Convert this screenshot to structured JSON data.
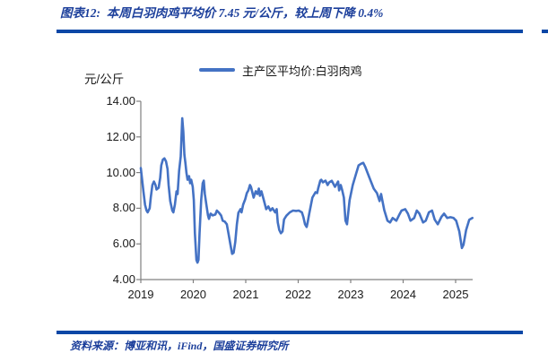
{
  "figure": {
    "title": "图表12:  本周白羽肉鸡平均价 7.45 元/公斤，较上周下降 0.4%",
    "source": "资料来源：博亚和讯，iFind，国盛证券研究所"
  },
  "colors": {
    "title_blue": "#1C3F9B",
    "rule_blue": "#0B47A6",
    "line_blue": "#4472C4",
    "axis_gray": "#808080",
    "text_dark": "#1A1A1A"
  },
  "chart_data": {
    "type": "line",
    "unit_label": "元/公斤",
    "legend": [
      "主产区平均价:白羽肉鸡"
    ],
    "grid": false,
    "legend_position": "top-center",
    "x_axis": {
      "range": [
        2019,
        2025.33
      ],
      "ticks": [
        {
          "v": 2019,
          "label": "2019"
        },
        {
          "v": 2020,
          "label": "2020"
        },
        {
          "v": 2021,
          "label": "2021"
        },
        {
          "v": 2022,
          "label": "2022"
        },
        {
          "v": 2023,
          "label": "2023"
        },
        {
          "v": 2024,
          "label": "2024"
        },
        {
          "v": 2025,
          "label": "2025"
        }
      ]
    },
    "y_axis": {
      "range": [
        4,
        14
      ],
      "ticks": [
        {
          "v": 14,
          "label": "14.00"
        },
        {
          "v": 12,
          "label": "12.00"
        },
        {
          "v": 10,
          "label": "10.00"
        },
        {
          "v": 8,
          "label": "8.00"
        },
        {
          "v": 6,
          "label": "6.00"
        },
        {
          "v": 4,
          "label": "4.00"
        }
      ]
    },
    "series": [
      {
        "name": "主产区平均价:白羽肉鸡",
        "color": "#4472C4",
        "points": [
          [
            2019.0,
            10.25
          ],
          [
            2019.05,
            8.95
          ],
          [
            2019.08,
            8.2
          ],
          [
            2019.11,
            7.87
          ],
          [
            2019.13,
            7.77
          ],
          [
            2019.17,
            8.0
          ],
          [
            2019.19,
            8.6
          ],
          [
            2019.22,
            9.3
          ],
          [
            2019.25,
            9.5
          ],
          [
            2019.28,
            9.3
          ],
          [
            2019.3,
            9.05
          ],
          [
            2019.34,
            9.15
          ],
          [
            2019.37,
            9.7
          ],
          [
            2019.39,
            10.4
          ],
          [
            2019.42,
            10.73
          ],
          [
            2019.45,
            10.8
          ],
          [
            2019.48,
            10.63
          ],
          [
            2019.51,
            10.2
          ],
          [
            2019.53,
            9.3
          ],
          [
            2019.56,
            8.4
          ],
          [
            2019.6,
            7.87
          ],
          [
            2019.62,
            7.77
          ],
          [
            2019.65,
            8.2
          ],
          [
            2019.68,
            8.95
          ],
          [
            2019.7,
            8.8
          ],
          [
            2019.73,
            10.1
          ],
          [
            2019.76,
            10.9
          ],
          [
            2019.79,
            13.05
          ],
          [
            2019.81,
            12.3
          ],
          [
            2019.83,
            11.0
          ],
          [
            2019.85,
            10.55
          ],
          [
            2019.87,
            9.98
          ],
          [
            2019.89,
            9.6
          ],
          [
            2019.92,
            9.8
          ],
          [
            2019.94,
            9.4
          ],
          [
            2019.96,
            9.6
          ],
          [
            2019.99,
            9.2
          ],
          [
            2020.01,
            8.45
          ],
          [
            2020.03,
            6.6
          ],
          [
            2020.06,
            5.1
          ],
          [
            2020.08,
            4.95
          ],
          [
            2020.1,
            5.1
          ],
          [
            2020.12,
            6.6
          ],
          [
            2020.15,
            8.45
          ],
          [
            2020.18,
            9.4
          ],
          [
            2020.2,
            9.55
          ],
          [
            2020.22,
            8.8
          ],
          [
            2020.25,
            8.2
          ],
          [
            2020.28,
            7.6
          ],
          [
            2020.3,
            7.4
          ],
          [
            2020.33,
            7.7
          ],
          [
            2020.37,
            7.6
          ],
          [
            2020.42,
            7.65
          ],
          [
            2020.45,
            7.87
          ],
          [
            2020.49,
            7.75
          ],
          [
            2020.53,
            7.6
          ],
          [
            2020.56,
            7.3
          ],
          [
            2020.6,
            7.25
          ],
          [
            2020.64,
            7.1
          ],
          [
            2020.67,
            6.6
          ],
          [
            2020.71,
            5.94
          ],
          [
            2020.74,
            5.44
          ],
          [
            2020.77,
            5.5
          ],
          [
            2020.8,
            6.1
          ],
          [
            2020.83,
            7.1
          ],
          [
            2020.86,
            7.75
          ],
          [
            2020.9,
            7.95
          ],
          [
            2020.92,
            7.77
          ],
          [
            2020.95,
            8.2
          ],
          [
            2020.99,
            8.5
          ],
          [
            2021.02,
            8.85
          ],
          [
            2021.05,
            9.0
          ],
          [
            2021.08,
            9.3
          ],
          [
            2021.1,
            9.2
          ],
          [
            2021.15,
            8.6
          ],
          [
            2021.19,
            8.95
          ],
          [
            2021.22,
            8.8
          ],
          [
            2021.25,
            9.1
          ],
          [
            2021.27,
            8.7
          ],
          [
            2021.3,
            8.95
          ],
          [
            2021.34,
            8.5
          ],
          [
            2021.39,
            7.95
          ],
          [
            2021.43,
            8.1
          ],
          [
            2021.47,
            7.87
          ],
          [
            2021.51,
            8.0
          ],
          [
            2021.56,
            7.77
          ],
          [
            2021.59,
            7.95
          ],
          [
            2021.61,
            7.2
          ],
          [
            2021.64,
            6.78
          ],
          [
            2021.67,
            6.6
          ],
          [
            2021.7,
            6.7
          ],
          [
            2021.73,
            7.37
          ],
          [
            2021.76,
            7.52
          ],
          [
            2021.78,
            7.6
          ],
          [
            2021.84,
            7.77
          ],
          [
            2021.9,
            7.87
          ],
          [
            2021.96,
            7.85
          ],
          [
            2022.01,
            7.87
          ],
          [
            2022.07,
            7.77
          ],
          [
            2022.1,
            7.5
          ],
          [
            2022.13,
            7.1
          ],
          [
            2022.16,
            6.95
          ],
          [
            2022.18,
            7.2
          ],
          [
            2022.21,
            7.7
          ],
          [
            2022.27,
            8.6
          ],
          [
            2022.33,
            8.9
          ],
          [
            2022.36,
            8.85
          ],
          [
            2022.38,
            9.1
          ],
          [
            2022.42,
            9.55
          ],
          [
            2022.44,
            9.6
          ],
          [
            2022.47,
            9.45
          ],
          [
            2022.52,
            9.55
          ],
          [
            2022.56,
            9.3
          ],
          [
            2022.59,
            9.45
          ],
          [
            2022.64,
            9.54
          ],
          [
            2022.7,
            9.2
          ],
          [
            2022.76,
            9.5
          ],
          [
            2022.78,
            9.0
          ],
          [
            2022.81,
            9.3
          ],
          [
            2022.84,
            9.0
          ],
          [
            2022.87,
            8.6
          ],
          [
            2022.9,
            7.3
          ],
          [
            2022.93,
            7.1
          ],
          [
            2022.96,
            7.95
          ],
          [
            2022.98,
            8.45
          ],
          [
            2023.04,
            9.3
          ],
          [
            2023.1,
            9.9
          ],
          [
            2023.15,
            10.4
          ],
          [
            2023.2,
            10.5
          ],
          [
            2023.24,
            10.55
          ],
          [
            2023.28,
            10.3
          ],
          [
            2023.32,
            10.0
          ],
          [
            2023.38,
            9.55
          ],
          [
            2023.44,
            9.1
          ],
          [
            2023.5,
            8.85
          ],
          [
            2023.55,
            8.4
          ],
          [
            2023.58,
            8.8
          ],
          [
            2023.64,
            7.9
          ],
          [
            2023.7,
            7.3
          ],
          [
            2023.75,
            7.2
          ],
          [
            2023.8,
            7.45
          ],
          [
            2023.87,
            7.3
          ],
          [
            2023.92,
            7.6
          ],
          [
            2023.97,
            7.87
          ],
          [
            2024.04,
            7.95
          ],
          [
            2024.09,
            7.7
          ],
          [
            2024.14,
            7.3
          ],
          [
            2024.21,
            7.45
          ],
          [
            2024.26,
            7.87
          ],
          [
            2024.31,
            7.7
          ],
          [
            2024.38,
            7.2
          ],
          [
            2024.43,
            7.3
          ],
          [
            2024.49,
            7.77
          ],
          [
            2024.55,
            7.87
          ],
          [
            2024.6,
            7.37
          ],
          [
            2024.66,
            7.1
          ],
          [
            2024.73,
            7.52
          ],
          [
            2024.78,
            7.7
          ],
          [
            2024.84,
            7.45
          ],
          [
            2024.9,
            7.5
          ],
          [
            2024.96,
            7.45
          ],
          [
            2025.01,
            7.3
          ],
          [
            2025.07,
            6.7
          ],
          [
            2025.12,
            5.77
          ],
          [
            2025.15,
            5.95
          ],
          [
            2025.2,
            6.78
          ],
          [
            2025.26,
            7.35
          ],
          [
            2025.32,
            7.45
          ]
        ]
      }
    ]
  }
}
